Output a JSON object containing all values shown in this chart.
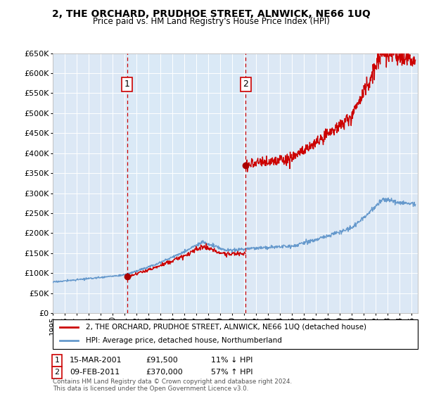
{
  "title": "2, THE ORCHARD, PRUDHOE STREET, ALNWICK, NE66 1UQ",
  "subtitle": "Price paid vs. HM Land Registry's House Price Index (HPI)",
  "y_values": [
    0,
    50000,
    100000,
    150000,
    200000,
    250000,
    300000,
    350000,
    400000,
    450000,
    500000,
    550000,
    600000,
    650000
  ],
  "sale1_year": 2001.21,
  "sale1_price": 91500,
  "sale1_label": "1",
  "sale1_date": "15-MAR-2001",
  "sale1_amount": "£91,500",
  "sale1_pct": "11% ↓ HPI",
  "sale2_year": 2011.12,
  "sale2_price": 370000,
  "sale2_label": "2",
  "sale2_date": "09-FEB-2011",
  "sale2_amount": "£370,000",
  "sale2_pct": "57% ↑ HPI",
  "legend_property": "2, THE ORCHARD, PRUDHOE STREET, ALNWICK, NE66 1UQ (detached house)",
  "legend_hpi": "HPI: Average price, detached house, Northumberland",
  "footer": "Contains HM Land Registry data © Crown copyright and database right 2024.\nThis data is licensed under the Open Government Licence v3.0.",
  "property_line_color": "#cc0000",
  "hpi_line_color": "#6699cc",
  "grid_color": "#cccccc",
  "background_color": "#ffffff",
  "plot_bg_color": "#dce8f5",
  "shade_color": "#ccddf0",
  "sale_marker_color": "#aa0000",
  "vline_color": "#cc0000",
  "xmin": 1995,
  "xmax": 2025.5,
  "ymin": 0,
  "ymax": 650000,
  "hpi_base_1995": 78000,
  "hpi_noise_seed": 17
}
